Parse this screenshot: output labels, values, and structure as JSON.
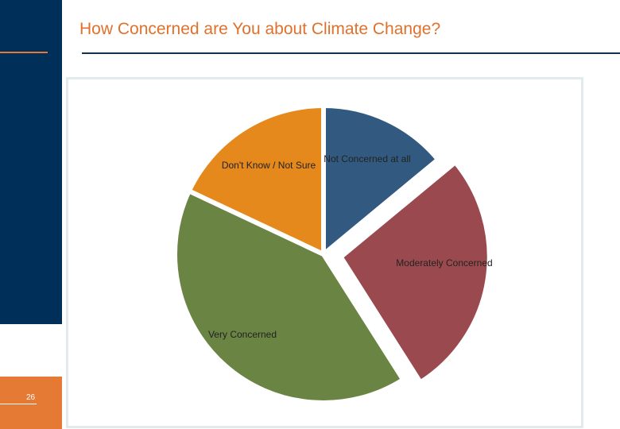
{
  "slide": {
    "title": "How Concerned are You about Climate Change?",
    "page_number": "26"
  },
  "colors": {
    "left_bar": "#00305a",
    "accent": "#e57a35",
    "title": "#e0712d",
    "frame": "#e2eaee"
  },
  "chart_data": {
    "type": "pie",
    "title": "",
    "start_angle_deg": 0,
    "direction": "clockwise",
    "exploded": true,
    "slices": [
      {
        "label": "Not Concerned at all",
        "value": 14,
        "color": "#325a80"
      },
      {
        "label": "Moderately Concerned",
        "value": 27,
        "color": "#9a4a4f"
      },
      {
        "label": "Very Concerned",
        "value": 41,
        "color": "#6a8443"
      },
      {
        "label": "Don't Know / Not Sure",
        "value": 18,
        "color": "#e5891c"
      }
    ]
  }
}
